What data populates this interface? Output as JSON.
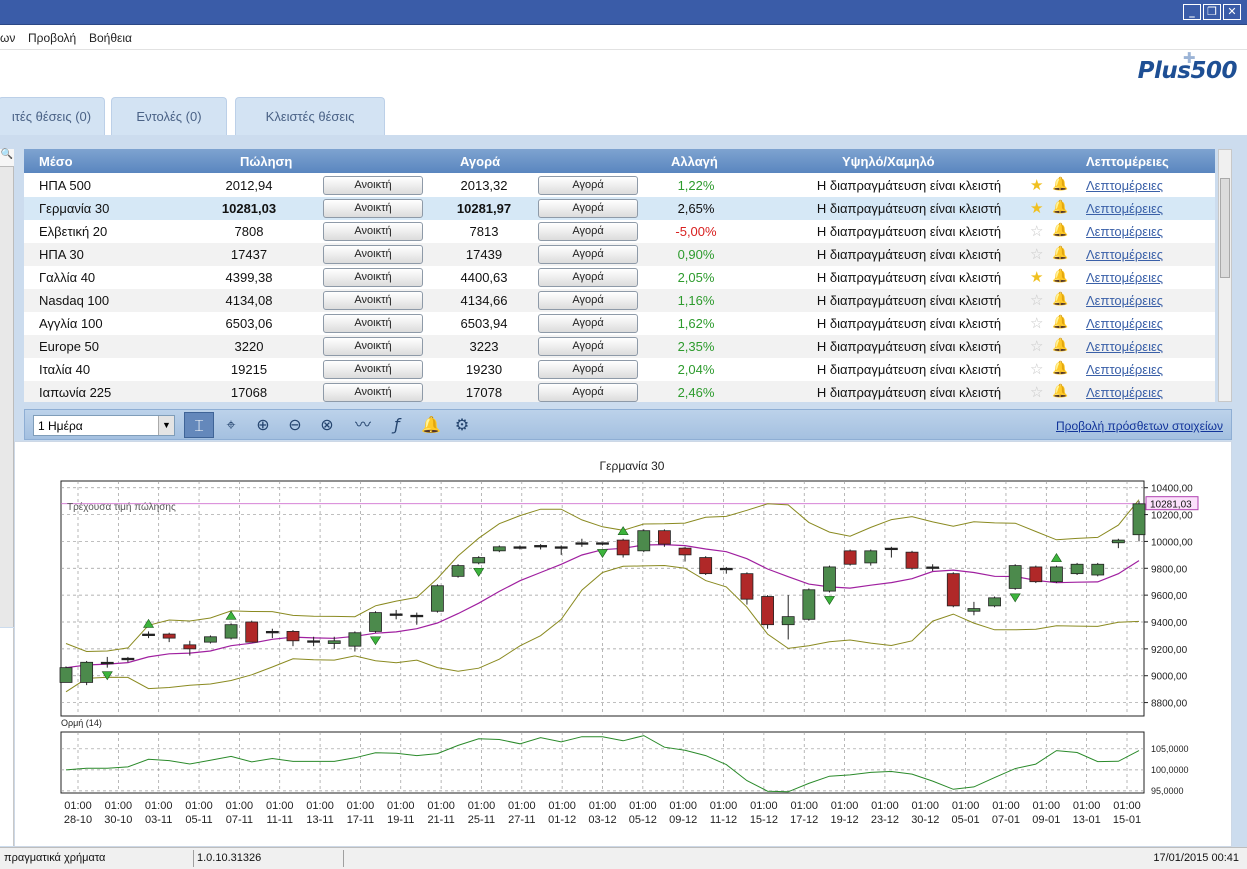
{
  "menu": {
    "file_tail": "ων",
    "view": "Προβολή",
    "help": "Βοήθεια"
  },
  "logo": "Plus500",
  "tabs": [
    {
      "label": "ιτές θέσεις (0)"
    },
    {
      "label": "Εντολές (0)"
    },
    {
      "label": "Κλειστές θέσεις"
    }
  ],
  "table": {
    "headers": {
      "instrument": "Μέσο",
      "sell": "Πώληση",
      "buy": "Αγορά",
      "change": "Αλλαγή",
      "highlow": "Υψηλό/Χαμηλό",
      "details": "Λεπτομέρειες"
    },
    "sell_button": "Ανοικτή",
    "buy_button": "Αγορά",
    "rows": [
      {
        "name": "ΗΠΑ 500",
        "sell": "2012,94",
        "buy": "2013,32",
        "change": "1,22%",
        "status": "Η διαπραγμάτευση είναι κλειστή",
        "details": "Λεπτομέρειες"
      },
      {
        "name": "Γερμανία 30",
        "sell": "10281,03",
        "buy": "10281,97",
        "change": "2,65%",
        "status": "Η διαπραγμάτευση είναι κλειστή",
        "details": "Λεπτομέρειες"
      },
      {
        "name": "Ελβετική 20",
        "sell": "7808",
        "buy": "7813",
        "change": "-5,00%",
        "status": "Η διαπραγμάτευση είναι κλειστή",
        "details": "Λεπτομέρειες"
      },
      {
        "name": "ΗΠΑ 30",
        "sell": "17437",
        "buy": "17439",
        "change": "0,90%",
        "status": "Η διαπραγμάτευση είναι κλειστή",
        "details": "Λεπτομέρειες"
      },
      {
        "name": "Γαλλία 40",
        "sell": "4399,38",
        "buy": "4400,63",
        "change": "2,05%",
        "status": "Η διαπραγμάτευση είναι κλειστή",
        "details": "Λεπτομέρειες"
      },
      {
        "name": "Nasdaq 100",
        "sell": "4134,08",
        "buy": "4134,66",
        "change": "1,16%",
        "status": "Η διαπραγμάτευση είναι κλειστή",
        "details": "Λεπτομέρειες"
      },
      {
        "name": "Αγγλία 100",
        "sell": "6503,06",
        "buy": "6503,94",
        "change": "1,62%",
        "status": "Η διαπραγμάτευση είναι κλειστή",
        "details": "Λεπτομέρειες"
      },
      {
        "name": "Europe 50",
        "sell": "3220",
        "buy": "3223",
        "change": "2,35%",
        "status": "Η διαπραγμάτευση είναι κλειστή",
        "details": "Λεπτομέρειες"
      },
      {
        "name": "Ιταλία 40",
        "sell": "19215",
        "buy": "19230",
        "change": "2,04%",
        "status": "Η διαπραγμάτευση είναι κλειστή",
        "details": "Λεπτομέρειες"
      },
      {
        "name": "Ιαπωνία 225",
        "sell": "17068",
        "buy": "17078",
        "change": "2,46%",
        "status": "Η διαπραγμάτευση είναι κλειστή",
        "details": "Λεπτομέρειες"
      }
    ]
  },
  "chart_toolbar": {
    "period": "1 Ημέρα",
    "more_link": "Προβολή πρόσθετων στοιχείων"
  },
  "chart": {
    "title": "Γερμανία 30",
    "current_label": "Τρέχουσα τιμή πώλησης",
    "current_value": "10281,03",
    "indicator_label": "Ορμή (14)"
  },
  "chart_data": {
    "type": "candlestick",
    "price_ylim": [
      8700,
      10450
    ],
    "price_ticks": [
      "8800,00",
      "9000,00",
      "9200,00",
      "9400,00",
      "9600,00",
      "9800,00",
      "10000,00",
      "10200,00",
      "10400,00"
    ],
    "momentum_ylim": [
      94500,
      109000
    ],
    "momentum_ticks": [
      "95,0000",
      "100,0000",
      "105,0000"
    ],
    "x_ticks": [
      "01:00 28-10",
      "01:00 30-10",
      "01:00 03-11",
      "01:00 05-11",
      "01:00 07-11",
      "01:00 11-11",
      "01:00 13-11",
      "01:00 17-11",
      "01:00 19-11",
      "01:00 21-11",
      "01:00 25-11",
      "01:00 27-11",
      "01:00 01-12",
      "01:00 03-12",
      "01:00 05-12",
      "01:00 09-12",
      "01:00 11-12",
      "01:00 15-12",
      "01:00 17-12",
      "01:00 19-12",
      "01:00 23-12",
      "01:00 30-12",
      "01:00 05-01",
      "01:00 07-01",
      "01:00 09-01",
      "01:00 13-01",
      "01:00 15-01"
    ],
    "candles": [
      [
        8950,
        9060,
        8950,
        9070
      ],
      [
        8950,
        9100,
        8930,
        9110
      ],
      [
        9100,
        9100,
        9060,
        9140
      ],
      [
        9120,
        9130,
        9100,
        9140
      ],
      [
        9300,
        9310,
        9280,
        9330
      ],
      [
        9310,
        9280,
        9250,
        9320
      ],
      [
        9230,
        9200,
        9150,
        9260
      ],
      [
        9250,
        9290,
        9240,
        9300
      ],
      [
        9280,
        9380,
        9270,
        9390
      ],
      [
        9400,
        9250,
        9250,
        9410
      ],
      [
        9320,
        9330,
        9280,
        9350
      ],
      [
        9330,
        9260,
        9220,
        9340
      ],
      [
        9260,
        9260,
        9220,
        9290
      ],
      [
        9240,
        9260,
        9200,
        9290
      ],
      [
        9220,
        9320,
        9180,
        9330
      ],
      [
        9330,
        9470,
        9320,
        9480
      ],
      [
        9460,
        9460,
        9420,
        9490
      ],
      [
        9450,
        9440,
        9380,
        9470
      ],
      [
        9480,
        9670,
        9470,
        9680
      ],
      [
        9740,
        9820,
        9730,
        9830
      ],
      [
        9840,
        9880,
        9830,
        9890
      ],
      [
        9930,
        9960,
        9920,
        9970
      ],
      [
        9960,
        9960,
        9940,
        9970
      ],
      [
        9970,
        9960,
        9940,
        9980
      ],
      [
        9960,
        9950,
        9900,
        9970
      ],
      [
        9990,
        9990,
        9960,
        10020
      ],
      [
        9980,
        9990,
        9970,
        9990
      ],
      [
        10010,
        9900,
        9880,
        10020
      ],
      [
        9930,
        10080,
        9920,
        10090
      ],
      [
        10080,
        9980,
        9960,
        10090
      ],
      [
        9950,
        9900,
        9850,
        9960
      ],
      [
        9880,
        9760,
        9750,
        9890
      ],
      [
        9800,
        9790,
        9760,
        9810
      ],
      [
        9760,
        9570,
        9530,
        9770
      ],
      [
        9590,
        9380,
        9350,
        9600
      ],
      [
        9380,
        9440,
        9270,
        9600
      ],
      [
        9420,
        9640,
        9410,
        9650
      ],
      [
        9630,
        9810,
        9620,
        9820
      ],
      [
        9930,
        9830,
        9820,
        9940
      ],
      [
        9840,
        9930,
        9820,
        9940
      ],
      [
        9950,
        9950,
        9880,
        9960
      ],
      [
        9920,
        9800,
        9790,
        9930
      ],
      [
        9800,
        9810,
        9780,
        9830
      ],
      [
        9760,
        9520,
        9510,
        9770
      ],
      [
        9480,
        9500,
        9450,
        9550
      ],
      [
        9520,
        9580,
        9510,
        9590
      ],
      [
        9650,
        9820,
        9640,
        9830
      ],
      [
        9810,
        9700,
        9690,
        9820
      ],
      [
        9700,
        9810,
        9690,
        9820
      ],
      [
        9760,
        9830,
        9750,
        9840
      ],
      [
        9750,
        9830,
        9740,
        9840
      ],
      [
        9990,
        10010,
        9950,
        10020
      ],
      [
        10050,
        10280,
        10000,
        10300
      ]
    ]
  },
  "status": {
    "account": "πραγματικά χρήματα",
    "version": "1.0.10.31326",
    "datetime": "17/01/2015 00:41"
  }
}
